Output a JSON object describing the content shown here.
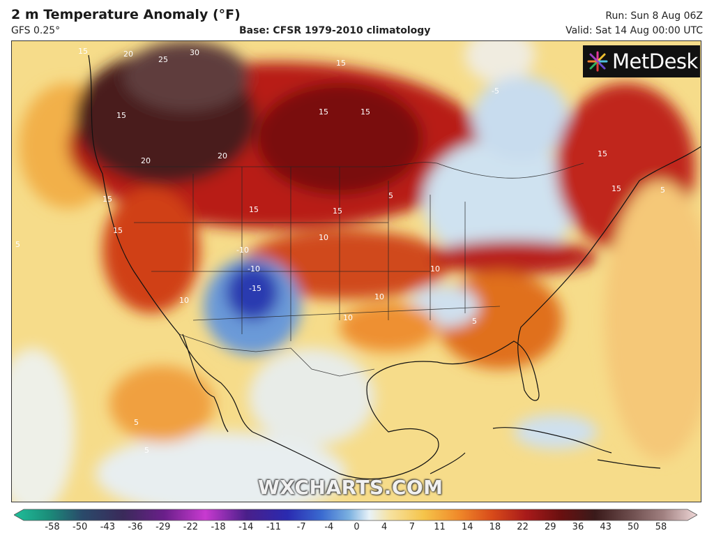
{
  "header": {
    "title": "2 m Temperature Anomaly (°F)",
    "model": "GFS 0.25°",
    "base": "Base: CFSR 1979-2010 climatology",
    "run": "Run: Sun 8 Aug 06Z",
    "valid": "Valid: Sat 14 Aug 00:00 UTC"
  },
  "branding": {
    "logo": "MetDesk",
    "watermark": "WXCHARTS.COM",
    "logo_icon": "starburst-icon"
  },
  "map": {
    "region": "North America",
    "contour_labels": [
      "15",
      "20",
      "25",
      "30",
      "15",
      "15",
      "15",
      "20",
      "20",
      "15",
      "15",
      "15",
      "15",
      "15",
      "10",
      "-10",
      "-10",
      "-15",
      "10",
      "10",
      "10",
      "5",
      "5",
      "5",
      "5",
      "5",
      "10",
      "15",
      "15",
      "-5",
      "5"
    ]
  },
  "colorbar": {
    "ticks": [
      "-58",
      "-50",
      "-43",
      "-36",
      "-29",
      "-22",
      "-18",
      "-14",
      "-11",
      "-7",
      "-4",
      "0",
      "4",
      "7",
      "11",
      "14",
      "18",
      "22",
      "29",
      "36",
      "43",
      "50",
      "58"
    ],
    "colors": [
      "#1fbf9a",
      "#1b8e7a",
      "#2a4a6a",
      "#3a2a5a",
      "#6a1f8a",
      "#a01fb0",
      "#c83ad0",
      "#4a1f8a",
      "#2a2ab0",
      "#3a6ad0",
      "#7ab0e0",
      "#e8f2f8",
      "#f6e2a0",
      "#f5c44a",
      "#f08a2a",
      "#d84a1a",
      "#a81a1a",
      "#6a1010",
      "#3a1a1a",
      "#5a3a3a",
      "#8a6060",
      "#c0a0a0",
      "#f0d8d8"
    ]
  }
}
